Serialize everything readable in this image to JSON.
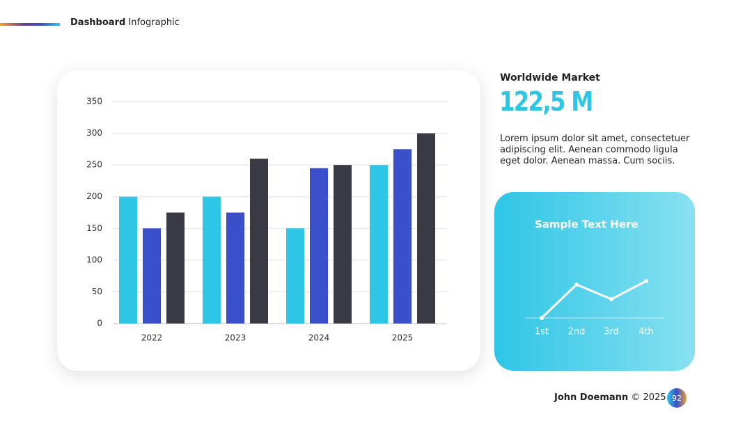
{
  "header": {
    "title_bold": "Dashboard",
    "title_rest": "Infographic"
  },
  "chart_data": [
    {
      "type": "bar",
      "categories": [
        "2022",
        "2023",
        "2024",
        "2025"
      ],
      "series": [
        {
          "color": "#2fc6e6",
          "values": [
            200,
            200,
            150,
            250
          ]
        },
        {
          "color": "#3a4fca",
          "values": [
            150,
            175,
            245,
            275
          ]
        },
        {
          "color": "#3a3a44",
          "values": [
            175,
            260,
            250,
            300
          ]
        }
      ],
      "ylim": [
        0,
        350
      ],
      "yticks": [
        0,
        50,
        100,
        150,
        200,
        250,
        300,
        350
      ],
      "grid": true
    },
    {
      "type": "line",
      "title": "Sample Text Here",
      "categories": [
        "1st",
        "2nd",
        "3rd",
        "4th"
      ],
      "values": [
        0,
        48,
        27,
        53
      ],
      "ylim": [
        0,
        60
      ],
      "color": "#ffffff"
    }
  ],
  "market": {
    "title": "Worldwide Market",
    "value": "122,5 M",
    "text": "Lorem ipsum dolor sit amet, consectetuer adipiscing elit. Aenean commodo ligula eget dolor. Aenean massa. Cum sociis."
  },
  "footer": {
    "author": "John Doemann",
    "copyright": "© 2025",
    "page": "92"
  }
}
